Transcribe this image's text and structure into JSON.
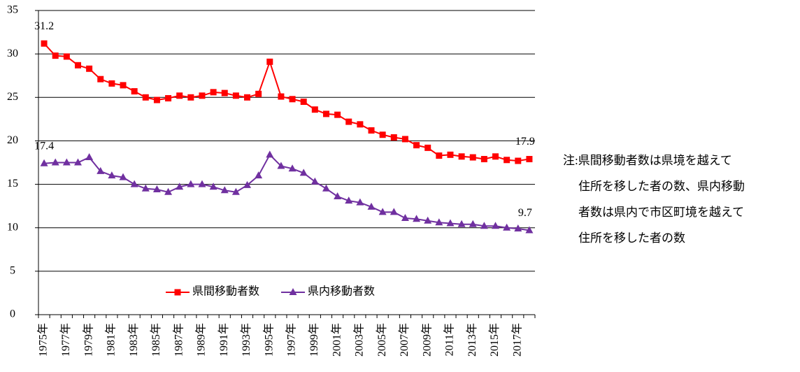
{
  "chart_data": {
    "type": "line",
    "categories": [
      "1975年",
      null,
      "1977年",
      null,
      "1979年",
      null,
      "1981年",
      null,
      "1983年",
      null,
      "1985年",
      null,
      "1987年",
      null,
      "1989年",
      null,
      "1991年",
      null,
      "1993年",
      null,
      "1995年",
      null,
      "1997年",
      null,
      "1999年",
      null,
      "2001年",
      null,
      "2003年",
      null,
      "2005年",
      null,
      "2007年",
      null,
      "2009年",
      null,
      "2011年",
      null,
      "2013年",
      null,
      "2015年",
      null,
      "2017年",
      null
    ],
    "series": [
      {
        "name": "県間移動者数",
        "color": "#ff0000",
        "marker": "square",
        "values": [
          31.2,
          29.8,
          29.7,
          28.7,
          28.3,
          27.1,
          26.6,
          26.4,
          25.7,
          25.0,
          24.7,
          24.9,
          25.2,
          25.0,
          25.2,
          25.6,
          25.5,
          25.2,
          25.0,
          25.4,
          29.1,
          25.1,
          24.8,
          24.5,
          23.6,
          23.1,
          23.0,
          22.2,
          21.9,
          21.2,
          20.7,
          20.4,
          20.2,
          19.5,
          19.2,
          18.3,
          18.4,
          18.2,
          18.1,
          17.9,
          18.2,
          17.8,
          17.7,
          17.9
        ]
      },
      {
        "name": "県内移動者数",
        "color": "#7030a0",
        "marker": "triangle",
        "values": [
          17.4,
          17.5,
          17.5,
          17.5,
          18.1,
          16.5,
          16.0,
          15.8,
          15.0,
          14.5,
          14.4,
          14.1,
          14.7,
          15.0,
          15.0,
          14.7,
          14.3,
          14.1,
          14.9,
          16.0,
          18.4,
          17.1,
          16.8,
          16.3,
          15.3,
          14.5,
          13.6,
          13.1,
          12.9,
          12.4,
          11.8,
          11.8,
          11.1,
          11.0,
          10.8,
          10.6,
          10.5,
          10.4,
          10.4,
          10.2,
          10.2,
          10.0,
          9.9,
          9.7
        ]
      }
    ],
    "labeled_points": [
      [
        0,
        0
      ],
      [
        0,
        43
      ],
      [
        1,
        0
      ],
      [
        1,
        43
      ]
    ],
    "ylim": [
      0,
      35
    ],
    "yticks": [
      0,
      5,
      10,
      15,
      20,
      25,
      30,
      35
    ],
    "grid": true,
    "legend": "bottom",
    "annotation": [
      "注:県間移動者数は県境を越えて",
      "住所を移した者の数、県内移動",
      "者数は県内で市区町境を越えて",
      "住所を移した者の数"
    ]
  }
}
